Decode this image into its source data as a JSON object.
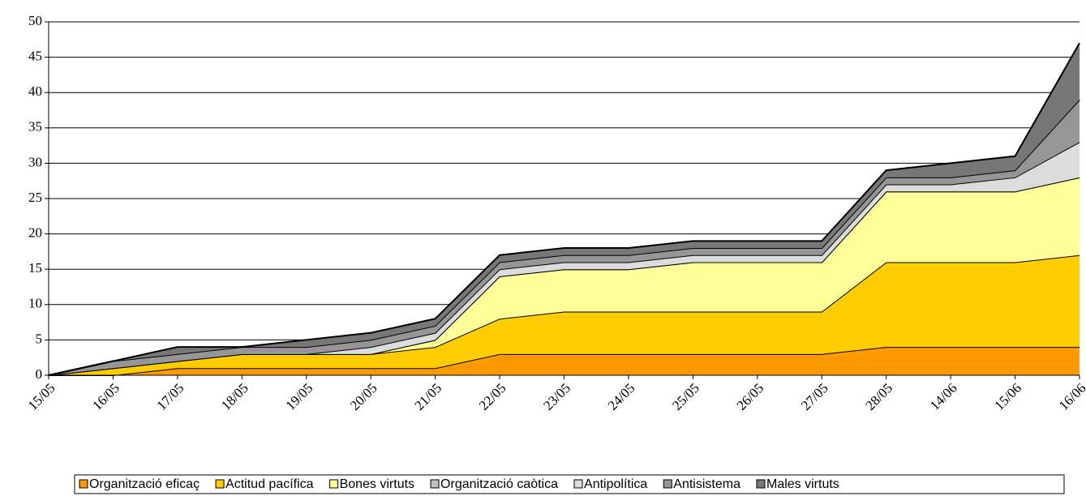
{
  "chart_data": {
    "type": "stacked_area",
    "categories": [
      "15/05",
      "16/05",
      "17/05",
      "18/05",
      "19/05",
      "20/05",
      "21/05",
      "22/05",
      "23/05",
      "24/05",
      "25/05",
      "26/05",
      "27/05",
      "28/05",
      "14/06",
      "15/06",
      "16/06"
    ],
    "series": [
      {
        "name": "Organització eficaç",
        "color": "#ff9900",
        "values": [
          0,
          0,
          1,
          1,
          1,
          1,
          1,
          3,
          3,
          3,
          3,
          3,
          3,
          4,
          4,
          4,
          4
        ]
      },
      {
        "name": "Actitud pacífica",
        "color": "#ffcc00",
        "values": [
          0,
          1,
          1,
          2,
          2,
          2,
          3,
          5,
          6,
          6,
          6,
          6,
          6,
          12,
          12,
          12,
          13
        ]
      },
      {
        "name": "Bones virtuts",
        "color": "#ffff99",
        "values": [
          0,
          0,
          0,
          0,
          0,
          0,
          1,
          6,
          6,
          6,
          7,
          7,
          7,
          10,
          10,
          10,
          11
        ]
      },
      {
        "name": "Organització caòtica",
        "color": "#c0c0c0",
        "values": [
          0,
          0,
          0,
          0,
          0,
          0,
          0,
          0,
          0,
          0,
          0,
          0,
          0,
          0,
          0,
          0,
          0
        ]
      },
      {
        "name": "Antipolítica",
        "color": "#dcdcdc",
        "values": [
          0,
          0,
          0,
          0,
          0,
          1,
          1,
          1,
          1,
          1,
          1,
          1,
          1,
          1,
          1,
          2,
          5
        ]
      },
      {
        "name": "Antisistema",
        "color": "#969696",
        "values": [
          0,
          1,
          1,
          1,
          1,
          1,
          1,
          1,
          1,
          1,
          1,
          1,
          1,
          1,
          1,
          1,
          6
        ]
      },
      {
        "name": "Males virtuts",
        "color": "#777777",
        "values": [
          0,
          0,
          1,
          0,
          1,
          1,
          1,
          1,
          1,
          1,
          1,
          1,
          1,
          1,
          2,
          2,
          8
        ]
      }
    ],
    "ylim": [
      0,
      50
    ],
    "yticks": [
      0,
      5,
      10,
      15,
      20,
      25,
      30,
      35,
      40,
      45,
      50
    ],
    "grid": true,
    "legend": "bottom"
  }
}
